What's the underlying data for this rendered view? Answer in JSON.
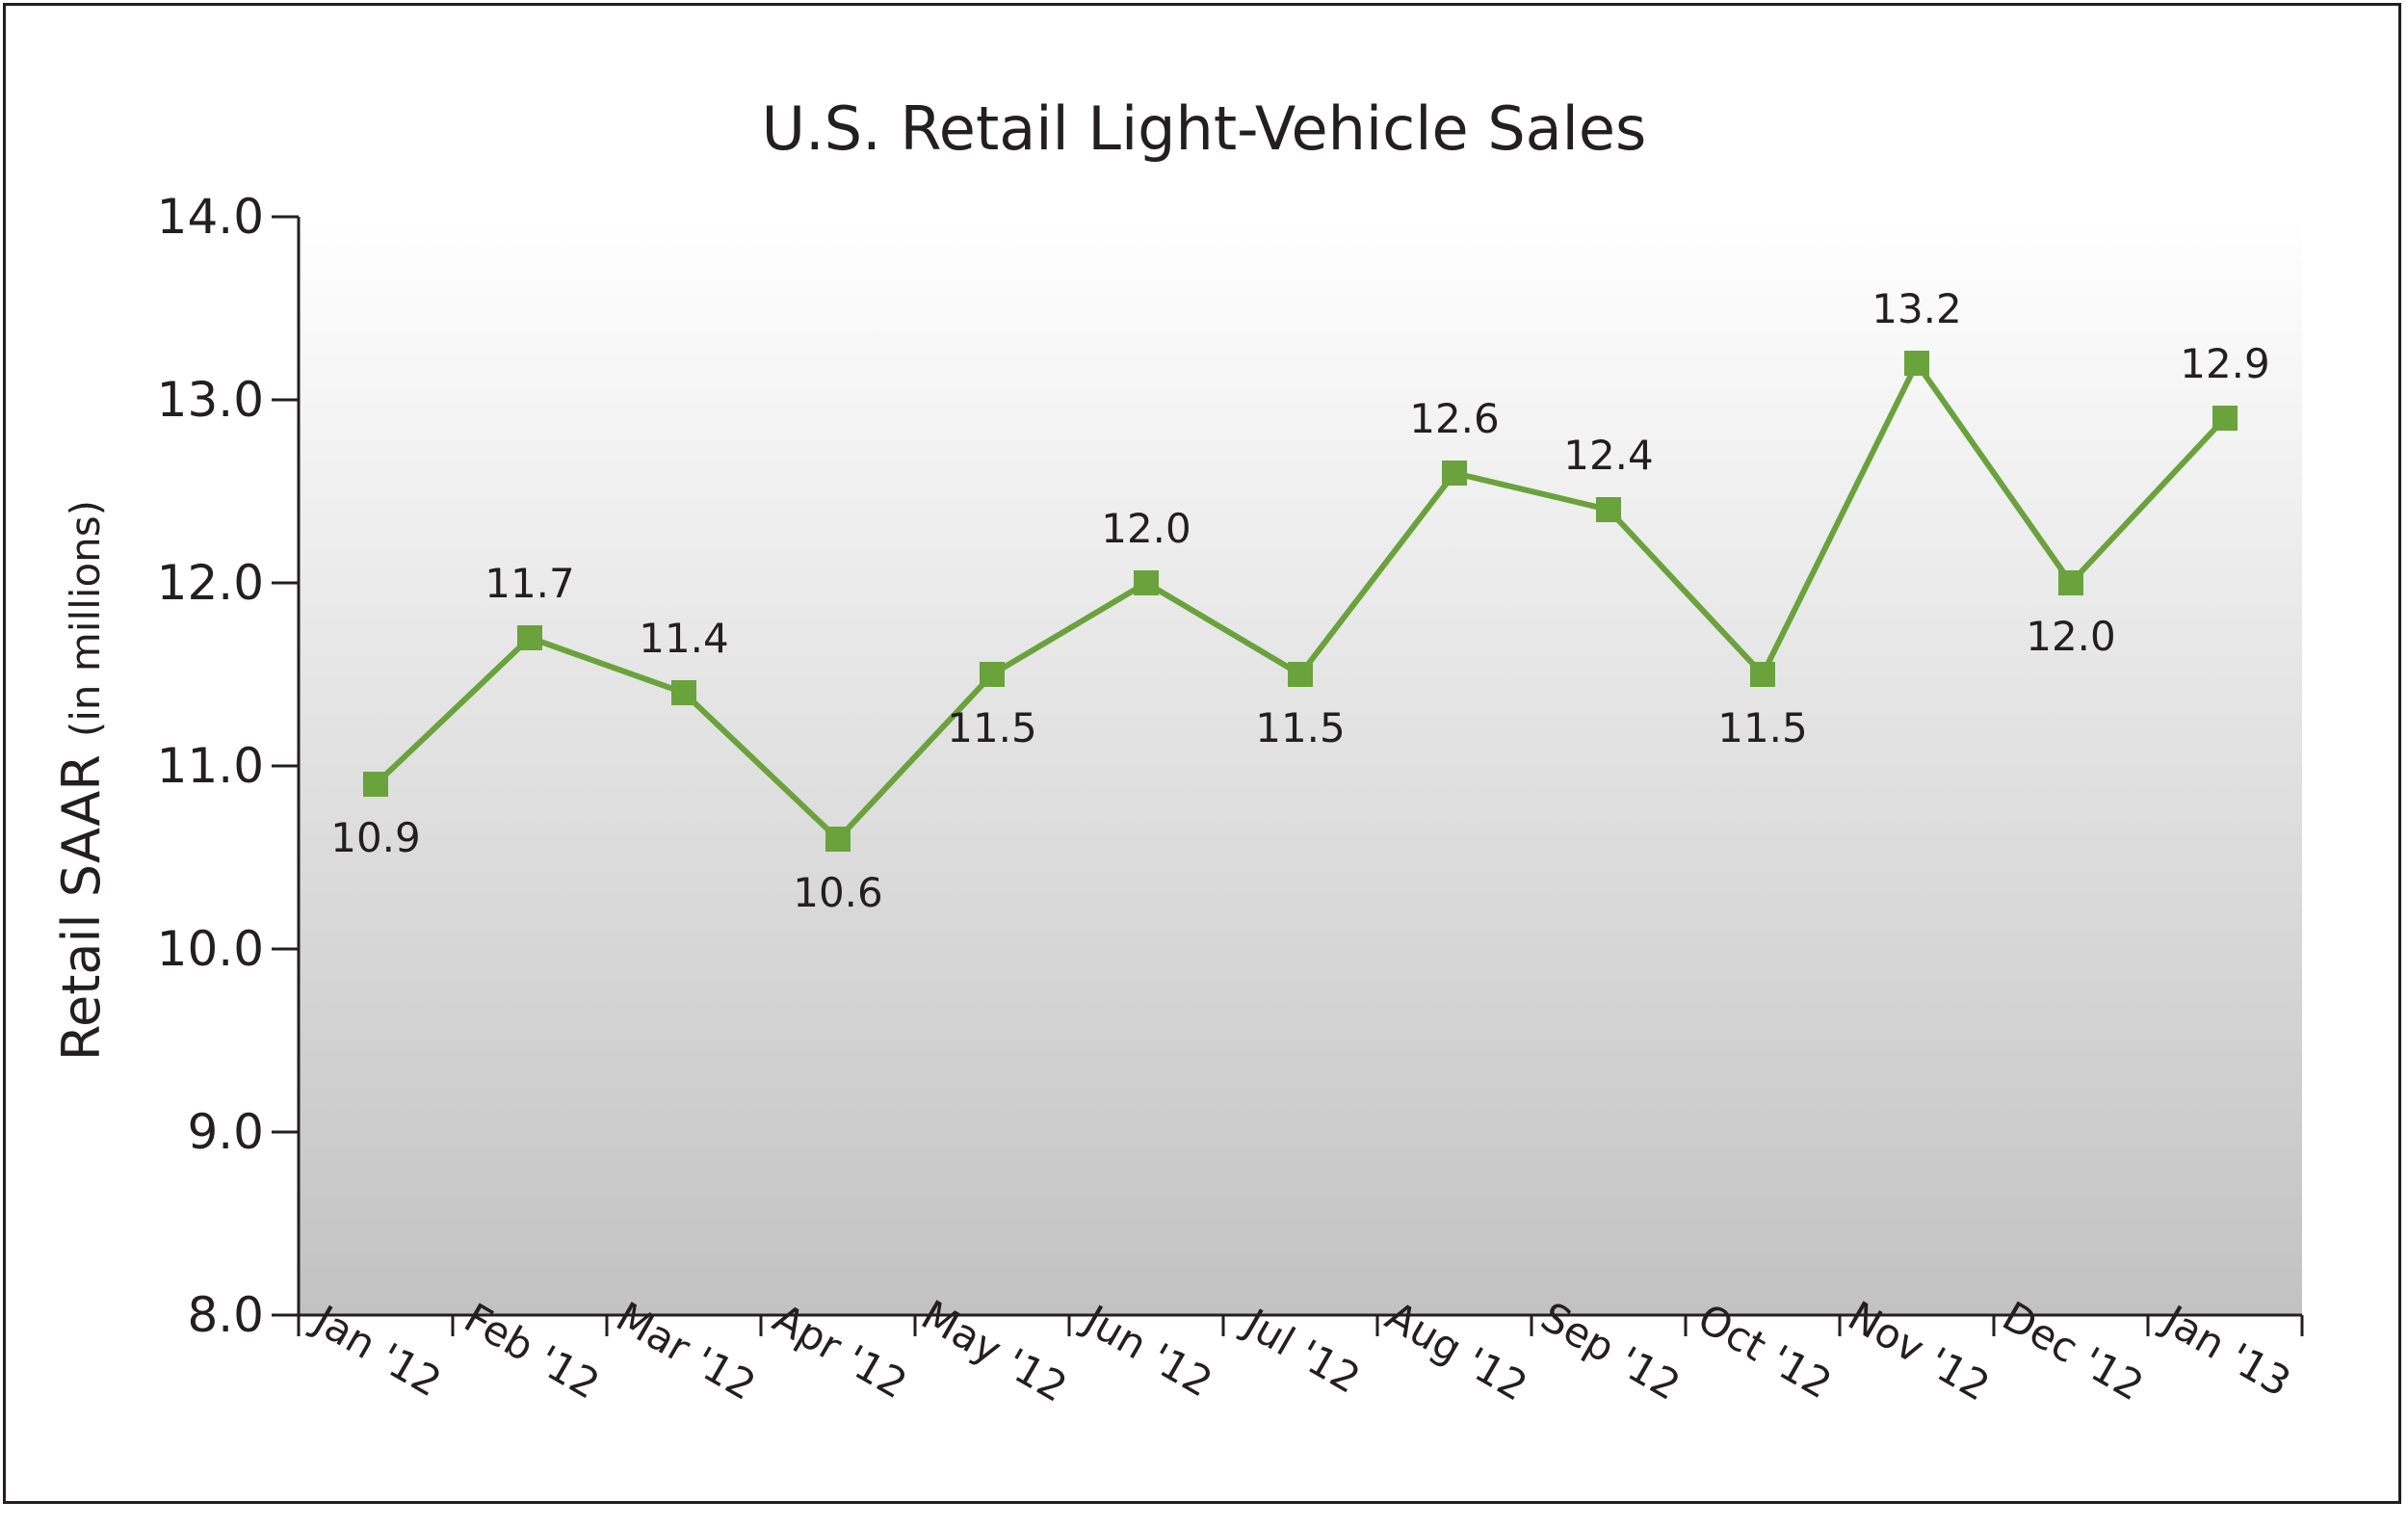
{
  "chart_data": {
    "type": "line",
    "title": "U.S. Retail Light-Vehicle Sales",
    "ylabel": "Retail SAAR",
    "ylabel_unit": "(in millions)",
    "xlabel": "",
    "categories": [
      "Jan '12",
      "Feb '12",
      "Mar '12",
      "Apr '12",
      "May '12",
      "Jun '12",
      "Jul '12",
      "Aug '12",
      "Sep '12",
      "Oct '12",
      "Nov '12",
      "Dec '12",
      "Jan '13"
    ],
    "series": [
      {
        "values": [
          10.9,
          11.7,
          11.4,
          10.6,
          11.5,
          12.0,
          11.5,
          12.6,
          12.4,
          11.5,
          13.2,
          12.0,
          12.9
        ],
        "data_labels": [
          "10.9",
          "11.7",
          "11.4",
          "10.6",
          "11.5",
          "12.0",
          "11.5",
          "12.6",
          "12.4",
          "11.5",
          "13.2",
          "12.0",
          "12.9"
        ],
        "label_positions": [
          "below",
          "above",
          "above",
          "below",
          "below",
          "above",
          "below",
          "above",
          "above",
          "below",
          "above",
          "below",
          "above"
        ],
        "color": "#6aa23c"
      }
    ],
    "ylim": [
      8.0,
      14.0
    ],
    "yticks": [
      "8.0",
      "9.0",
      "10.0",
      "11.0",
      "12.0",
      "13.0",
      "14.0"
    ],
    "grid": false,
    "legend": "none",
    "background": "gradient from white at top to light gray at bottom"
  },
  "colors": {
    "line": "#6aa23c",
    "text": "#231f20",
    "axis": "#231f20",
    "plot_bg_top": "#ffffff",
    "plot_bg_bottom": "#c2c2c2"
  }
}
